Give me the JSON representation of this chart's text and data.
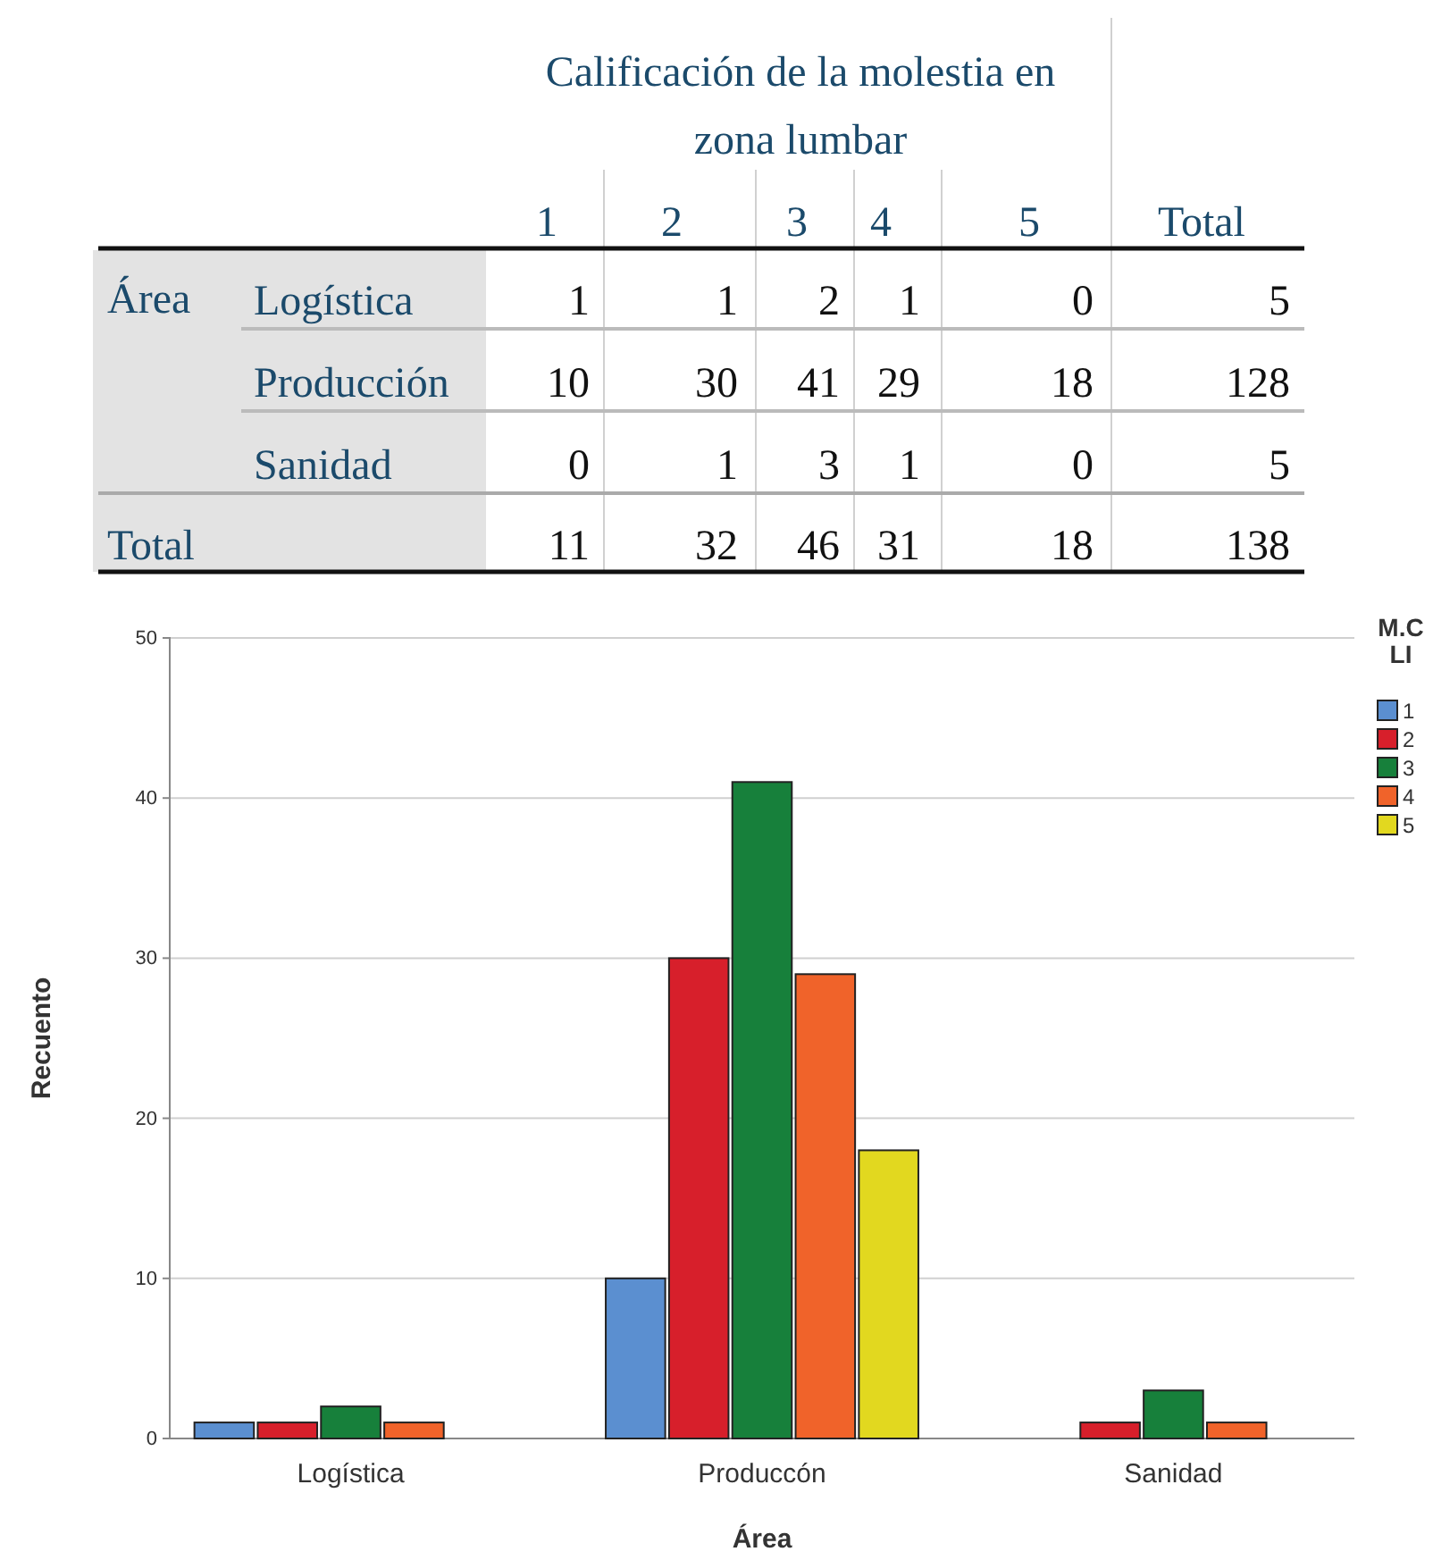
{
  "chart_data": [
    {
      "type": "other",
      "title": "Calificación de la molestia en zona lumbar",
      "annotations": [
        "1",
        "2",
        "3",
        "4",
        "5",
        "Total",
        "Área",
        "Logística",
        "1 1 2 1 0 5",
        "Producción",
        "10 30 41 29 18 128",
        "Sanidad",
        "0 1 3 1 0 5",
        "Total",
        "11 32 46 31 18 138"
      ]
    },
    {
      "type": "bar",
      "xlabel": "Área",
      "ylabel": "Recuento",
      "legend_title": "M.C LI",
      "categories": [
        "Logística",
        "Produccón",
        "Sanidad"
      ],
      "series": [
        {
          "name": "1",
          "color": "#5b8fd0",
          "values": [
            1,
            10,
            0
          ]
        },
        {
          "name": "2",
          "color": "#d71f2b",
          "values": [
            1,
            30,
            1
          ]
        },
        {
          "name": "3",
          "color": "#17803b",
          "values": [
            2,
            41,
            3
          ]
        },
        {
          "name": "4",
          "color": "#f0632a",
          "values": [
            1,
            29,
            1
          ]
        },
        {
          "name": "5",
          "color": "#e2d81f",
          "values": [
            0,
            18,
            0
          ]
        }
      ],
      "ylim": [
        0,
        50
      ],
      "yticks": [
        0,
        10,
        20,
        30,
        40,
        50
      ],
      "grid": "y",
      "legend": "top right"
    }
  ]
}
